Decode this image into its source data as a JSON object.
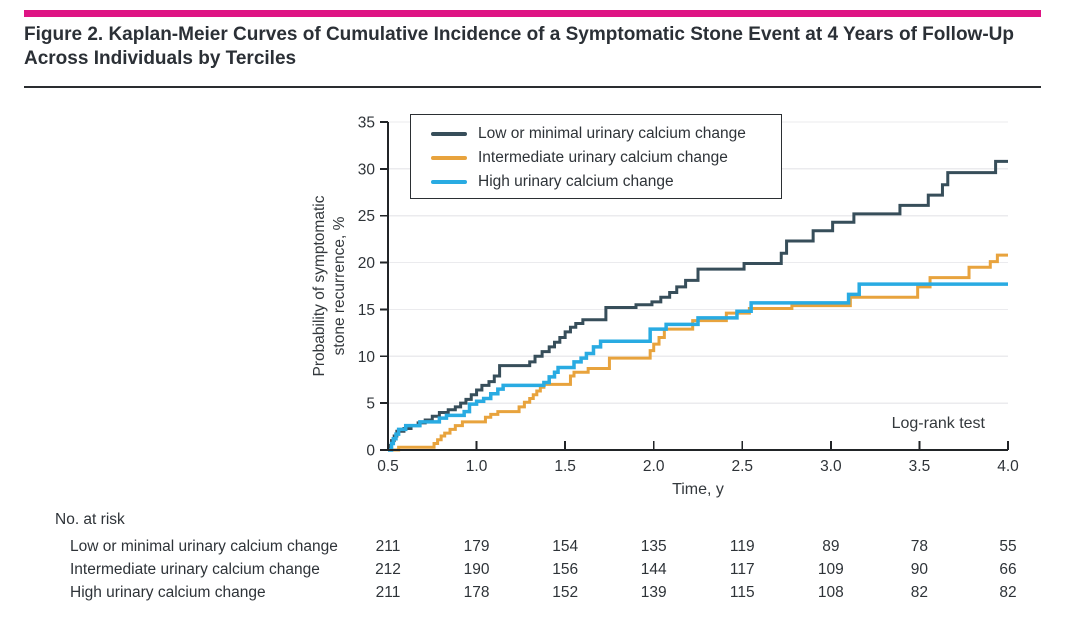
{
  "figure": {
    "title": "Figure 2. Kaplan-Meier Curves of Cumulative Incidence of a Symptomatic Stone Event at 4 Years of Follow-Up Across Individuals by Terciles"
  },
  "colors": {
    "brand_bar": "#de1484",
    "axis": "#212427",
    "grid": "#ebebee",
    "text": "#2e3338",
    "series_low": "#374e5a",
    "series_intermediate": "#e8a33d",
    "series_high": "#29abe2"
  },
  "chart_data": {
    "type": "line",
    "subtype": "kaplan-meier-step",
    "xlabel": "Time, y",
    "ylabel": "Probability of symptomatic stone recurrence, %",
    "ylabel_lines": [
      "Probability of symptomatic",
      "stone recurrence, %"
    ],
    "xlim": [
      0.5,
      4.0
    ],
    "ylim": [
      0,
      35
    ],
    "x_ticks": [
      "0.5",
      "1.0",
      "1.5",
      "2.0",
      "2.5",
      "3.0",
      "3.5",
      "4.0"
    ],
    "y_ticks": [
      "0",
      "5",
      "10",
      "15",
      "20",
      "25",
      "30",
      "35"
    ],
    "grid": true,
    "legend_position": "top-left-box",
    "annotation": "Log-rank test",
    "series": [
      {
        "id": "low-or-minimal",
        "name": "Low or minimal urinary calcium change",
        "color": "#374e5a",
        "stroke_width": 3,
        "points": [
          [
            0.5,
            0
          ],
          [
            0.51,
            0.5
          ],
          [
            0.52,
            1.0
          ],
          [
            0.535,
            1.5
          ],
          [
            0.55,
            2.0
          ],
          [
            0.59,
            2.3
          ],
          [
            0.63,
            2.6
          ],
          [
            0.67,
            2.9
          ],
          [
            0.71,
            3.2
          ],
          [
            0.75,
            3.6
          ],
          [
            0.79,
            4.0
          ],
          [
            0.84,
            4.3
          ],
          [
            0.88,
            4.6
          ],
          [
            0.91,
            5.0
          ],
          [
            0.94,
            5.4
          ],
          [
            0.97,
            5.9
          ],
          [
            1.0,
            6.4
          ],
          [
            1.03,
            6.9
          ],
          [
            1.07,
            7.3
          ],
          [
            1.1,
            7.9
          ],
          [
            1.13,
            9.0
          ],
          [
            1.3,
            9.4
          ],
          [
            1.33,
            10.0
          ],
          [
            1.37,
            10.5
          ],
          [
            1.41,
            11.0
          ],
          [
            1.44,
            11.5
          ],
          [
            1.47,
            12.0
          ],
          [
            1.5,
            12.6
          ],
          [
            1.53,
            13.1
          ],
          [
            1.56,
            13.5
          ],
          [
            1.6,
            13.9
          ],
          [
            1.73,
            15.2
          ],
          [
            1.9,
            15.5
          ],
          [
            1.99,
            15.8
          ],
          [
            2.04,
            16.3
          ],
          [
            2.09,
            16.8
          ],
          [
            2.13,
            17.4
          ],
          [
            2.18,
            18.1
          ],
          [
            2.25,
            19.3
          ],
          [
            2.51,
            19.9
          ],
          [
            2.72,
            21.0
          ],
          [
            2.75,
            22.3
          ],
          [
            2.9,
            23.4
          ],
          [
            3.01,
            24.3
          ],
          [
            3.13,
            25.2
          ],
          [
            3.39,
            26.1
          ],
          [
            3.55,
            27.2
          ],
          [
            3.63,
            28.3
          ],
          [
            3.66,
            29.6
          ],
          [
            3.93,
            30.8
          ],
          [
            4.0,
            30.8
          ]
        ]
      },
      {
        "id": "intermediate",
        "name": "Intermediate urinary calcium change",
        "color": "#e8a33d",
        "stroke_width": 3,
        "points": [
          [
            0.5,
            0
          ],
          [
            0.56,
            0.3
          ],
          [
            0.76,
            0.7
          ],
          [
            0.78,
            1.1
          ],
          [
            0.8,
            1.5
          ],
          [
            0.82,
            1.8
          ],
          [
            0.85,
            2.2
          ],
          [
            0.88,
            2.6
          ],
          [
            0.92,
            3.0
          ],
          [
            1.05,
            3.5
          ],
          [
            1.08,
            3.8
          ],
          [
            1.12,
            4.1
          ],
          [
            1.24,
            4.6
          ],
          [
            1.27,
            5.1
          ],
          [
            1.3,
            5.5
          ],
          [
            1.32,
            5.9
          ],
          [
            1.34,
            6.3
          ],
          [
            1.36,
            6.7
          ],
          [
            1.38,
            7.0
          ],
          [
            1.53,
            7.9
          ],
          [
            1.55,
            8.3
          ],
          [
            1.63,
            8.7
          ],
          [
            1.75,
            9.8
          ],
          [
            1.98,
            10.6
          ],
          [
            2.0,
            11.3
          ],
          [
            2.03,
            12.0
          ],
          [
            2.06,
            12.9
          ],
          [
            2.22,
            13.8
          ],
          [
            2.41,
            14.6
          ],
          [
            2.54,
            15.1
          ],
          [
            2.78,
            15.4
          ],
          [
            3.11,
            16.3
          ],
          [
            3.49,
            17.4
          ],
          [
            3.56,
            18.4
          ],
          [
            3.78,
            19.5
          ],
          [
            3.9,
            20.1
          ],
          [
            3.94,
            20.8
          ],
          [
            4.0,
            20.8
          ]
        ]
      },
      {
        "id": "high",
        "name": "High urinary calcium change",
        "color": "#29abe2",
        "stroke_width": 3.5,
        "points": [
          [
            0.5,
            0
          ],
          [
            0.52,
            0.7
          ],
          [
            0.53,
            1.2
          ],
          [
            0.545,
            1.7
          ],
          [
            0.56,
            2.2
          ],
          [
            0.6,
            2.6
          ],
          [
            0.68,
            3.0
          ],
          [
            0.79,
            3.4
          ],
          [
            0.83,
            3.7
          ],
          [
            0.93,
            4.1
          ],
          [
            0.96,
            4.9
          ],
          [
            1.0,
            5.2
          ],
          [
            1.04,
            5.5
          ],
          [
            1.08,
            6.0
          ],
          [
            1.12,
            6.5
          ],
          [
            1.15,
            6.9
          ],
          [
            1.38,
            7.2
          ],
          [
            1.41,
            7.8
          ],
          [
            1.44,
            8.3
          ],
          [
            1.46,
            8.8
          ],
          [
            1.55,
            9.4
          ],
          [
            1.59,
            9.8
          ],
          [
            1.62,
            10.3
          ],
          [
            1.66,
            11.0
          ],
          [
            1.7,
            11.6
          ],
          [
            1.98,
            12.9
          ],
          [
            2.07,
            13.4
          ],
          [
            2.25,
            14.1
          ],
          [
            2.47,
            14.8
          ],
          [
            2.55,
            15.7
          ],
          [
            3.1,
            16.6
          ],
          [
            3.16,
            17.7
          ],
          [
            4.0,
            17.7
          ]
        ]
      }
    ]
  },
  "risk_table": {
    "heading": "No. at risk",
    "times": [
      0.5,
      1.0,
      1.5,
      2.0,
      2.5,
      3.0,
      3.5,
      4.0
    ],
    "rows": [
      {
        "label": "Low or minimal urinary calcium change",
        "values": [
          211,
          179,
          154,
          135,
          119,
          89,
          78,
          55
        ]
      },
      {
        "label": "Intermediate urinary calcium change",
        "values": [
          212,
          190,
          156,
          144,
          117,
          109,
          90,
          66
        ]
      },
      {
        "label": "High urinary calcium change",
        "values": [
          211,
          178,
          152,
          139,
          115,
          108,
          82,
          82
        ]
      }
    ]
  }
}
